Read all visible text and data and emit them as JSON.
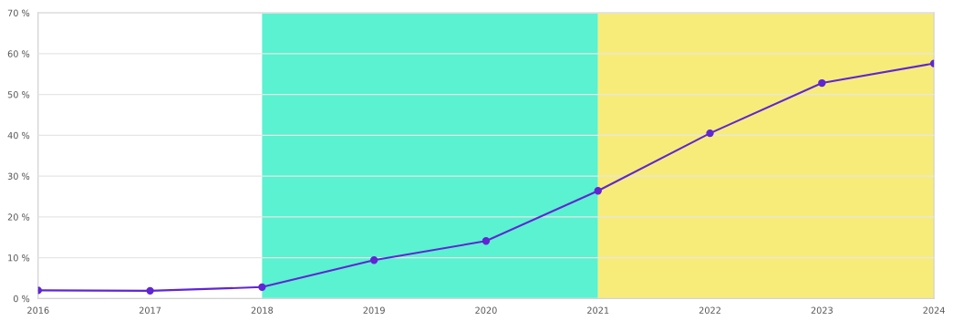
{
  "chart_data": {
    "type": "line",
    "x": [
      2016,
      2017,
      2018,
      2019,
      2020,
      2021,
      2022,
      2023,
      2024
    ],
    "series": [
      {
        "color": "#6125d4",
        "values": [
          2.0,
          1.9,
          2.8,
          9.4,
          14.1,
          26.4,
          40.5,
          52.8,
          57.6
        ]
      }
    ],
    "xlim": [
      2016,
      2024
    ],
    "xticks": [
      2016,
      2017,
      2018,
      2019,
      2020,
      2021,
      2022,
      2023,
      2024
    ],
    "ylim": [
      0,
      70
    ],
    "yticks": [
      {
        "value": 0,
        "label": "0 %"
      },
      {
        "value": 10,
        "label": "10 %"
      },
      {
        "value": 20,
        "label": "20 %"
      },
      {
        "value": 30,
        "label": "30 %"
      },
      {
        "value": 40,
        "label": "40 %"
      },
      {
        "value": 50,
        "label": "50 %"
      },
      {
        "value": 60,
        "label": "60 %"
      },
      {
        "value": 70,
        "label": "70 %"
      }
    ],
    "bands": [
      {
        "axis": "x",
        "from": 2018,
        "to": 2021,
        "color": "#5af2d0"
      },
      {
        "axis": "x",
        "from": 2021,
        "to": 2024,
        "color": "#f7ec7a"
      }
    ],
    "grid": "y",
    "marker": "circle",
    "line_style": "solid"
  }
}
